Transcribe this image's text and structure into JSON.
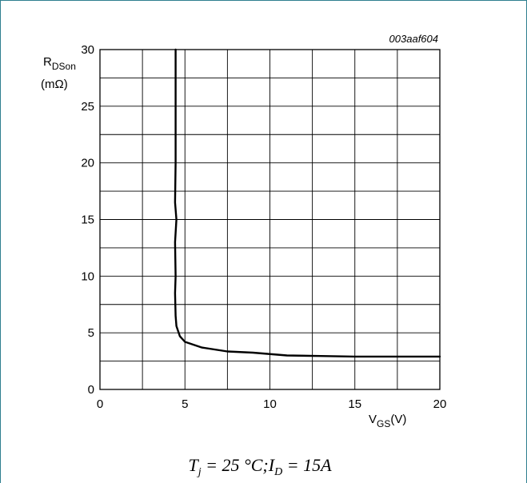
{
  "figure_ref": "003aaf604",
  "conditions": "T_j = 25 °C; I_D = 15A",
  "chart_data": {
    "type": "line",
    "xlabel": "V_GS (V)",
    "ylabel": "R_DSon (mΩ)",
    "xlim": [
      0,
      20
    ],
    "ylim": [
      0,
      30
    ],
    "xticks": [
      0,
      5,
      10,
      15,
      20
    ],
    "yticks": [
      0,
      5,
      10,
      15,
      20,
      25,
      30
    ],
    "grid": true,
    "series": [
      {
        "points": [
          [
            4.45,
            30
          ],
          [
            4.45,
            25
          ],
          [
            4.45,
            20
          ],
          [
            4.42,
            16.5
          ],
          [
            4.5,
            15
          ],
          [
            4.42,
            13
          ],
          [
            4.45,
            10
          ],
          [
            4.42,
            8.5
          ],
          [
            4.45,
            6.5
          ],
          [
            4.5,
            5.6
          ],
          [
            4.7,
            4.7
          ],
          [
            5.0,
            4.2
          ],
          [
            6.0,
            3.7
          ],
          [
            7.5,
            3.35
          ],
          [
            9.0,
            3.25
          ],
          [
            11.0,
            3.0
          ],
          [
            13.0,
            2.95
          ],
          [
            15.0,
            2.9
          ],
          [
            20.0,
            2.9
          ]
        ]
      }
    ]
  }
}
